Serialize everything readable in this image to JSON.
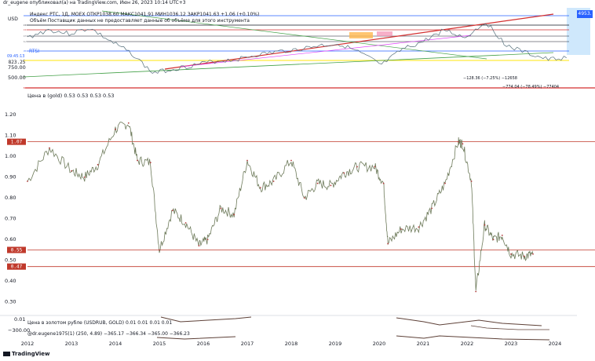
{
  "header": {
    "text": "dr_eugene опубликовал(а) на TradingView.com, Июн 26, 2023 10:14 UTC+3"
  },
  "top_pane": {
    "legend": [
      "Индекс РТС, 1Д, MOEX  ОТКР1038.60  МАКС1041.91  МИН1036.12  ЗАКР1041.63 +1.06 (+0.10%)",
      "Объём  Поставщик данных не предоставляет данные об объёме для этого инструмента"
    ],
    "currency": "USD",
    "y_ticks": [
      "750.00",
      "500.00"
    ],
    "price_tags": [
      {
        "text": "1507.38",
        "color": "#131722"
      },
      {
        "text": "1480.69",
        "color": "#c0392b"
      },
      {
        "text": "1302.60",
        "color": "#131722"
      },
      {
        "text": "1200.93",
        "color": "#131722"
      },
      {
        "text": "1041.63",
        "color": "#2962ff"
      },
      {
        "text": "823.25",
        "color": "#c8b400"
      },
      {
        "text": "251.30",
        "color": "#c0392b"
      }
    ],
    "rts_label": "RTSI",
    "rts_sub": "09:45:13",
    "right_tag": "4953.",
    "annotations": [
      "−128.36 (−7.25%) −12658",
      "−774.04 (−78.49%) −77404"
    ],
    "accent_colors": {
      "red_line": "#d32f2f",
      "green_line": "#43a047",
      "pink_line": "#e040fb",
      "yellow_line": "#ffeb3b",
      "blue_line": "#2962ff"
    }
  },
  "chart_data": [
    {
      "type": "line",
      "title": "Цена в (gold)  0.53  0.53  0.53  0.53",
      "x_ticks": [
        "2012",
        "2013",
        "2014",
        "2015",
        "2016",
        "2017",
        "2018",
        "2019",
        "2020",
        "2021",
        "2022",
        "2023",
        "2024"
      ],
      "y_ticks": [
        1.2,
        1.1,
        1.0,
        0.9,
        0.8,
        0.7,
        0.6,
        0.5,
        0.4,
        0.3
      ],
      "ylim": [
        0.25,
        1.28
      ],
      "hlines": [
        {
          "value": 1.07,
          "label": "1.07",
          "color": "#c0392b"
        },
        {
          "value": 0.55,
          "label": "0.55",
          "color": "#c0392b"
        },
        {
          "value": 0.47,
          "label": "0.47",
          "color": "#c0392b"
        }
      ],
      "series": [
        {
          "x": [
            2012.0,
            2012.5,
            2013.0,
            2013.3,
            2013.6,
            2014.0,
            2014.3,
            2014.5,
            2014.8,
            2015.0,
            2015.3,
            2015.6,
            2015.9,
            2016.1,
            2016.4,
            2016.7,
            2017.0,
            2017.3,
            2017.6,
            2018.0,
            2018.3,
            2018.6,
            2018.9,
            2019.2,
            2019.5,
            2019.9,
            2020.1,
            2020.2,
            2020.5,
            2020.9,
            2021.2,
            2021.5,
            2021.8,
            2021.9,
            2022.1,
            2022.2,
            2022.4,
            2022.6,
            2022.8,
            2023.0,
            2023.3,
            2023.5
          ],
          "values": [
            0.88,
            1.04,
            0.93,
            0.9,
            0.96,
            1.13,
            1.16,
            0.98,
            0.97,
            0.55,
            0.74,
            0.68,
            0.57,
            0.6,
            0.75,
            0.72,
            0.98,
            0.85,
            0.88,
            0.98,
            0.8,
            0.87,
            0.86,
            0.92,
            0.95,
            0.95,
            0.87,
            0.58,
            0.65,
            0.66,
            0.75,
            0.87,
            1.07,
            1.06,
            0.88,
            0.35,
            0.67,
            0.6,
            0.62,
            0.53,
            0.52,
            0.53
          ]
        }
      ]
    }
  ],
  "bottom_pane": {
    "title": "Цена в золотом рубле (USDRUB, GOLD)  0.01  0.01  0.01  0.01",
    "y_ticks": [
      "0.01",
      "−300.00"
    ],
    "indicator": "@dr.eugene1975(1) (250, 4.89)  −365.17  −366.34  −365.00  −366.23"
  },
  "footer": {
    "brand": "TradingView"
  }
}
